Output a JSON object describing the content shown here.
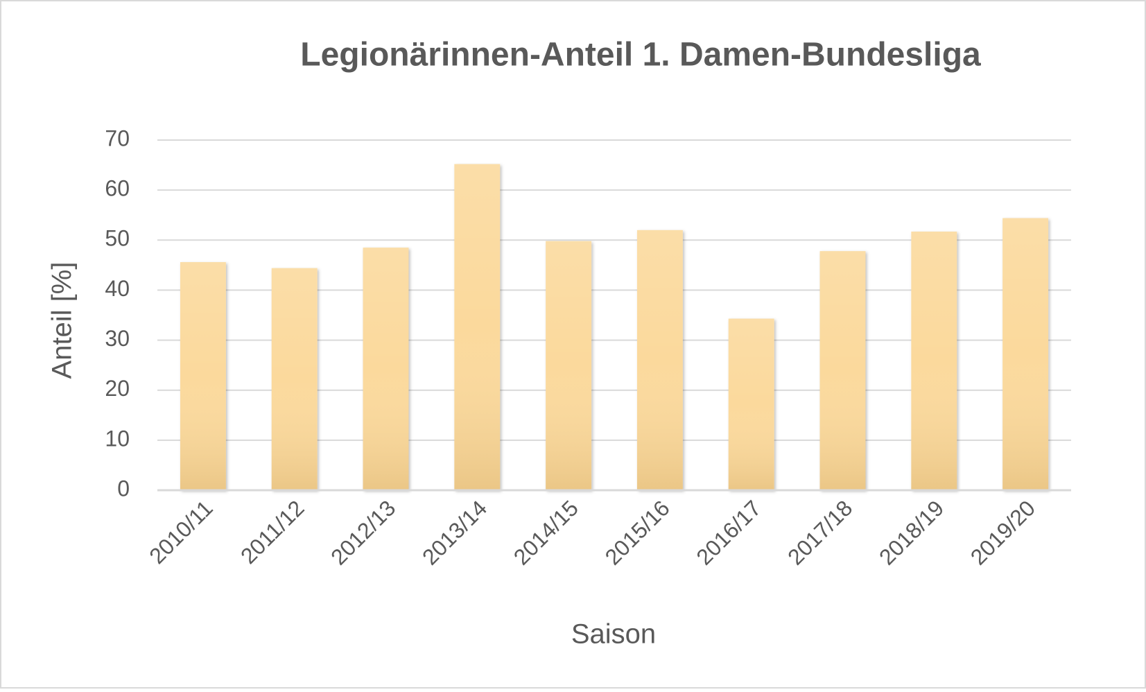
{
  "chart_data": {
    "type": "bar",
    "title": "Legionärinnen-Anteil 1. Damen-Bundesliga",
    "x_label": "Saison",
    "y_label": "Anteil [%]",
    "categories": [
      "2010/11",
      "2011/12",
      "2012/13",
      "2013/14",
      "2014/15",
      "2015/16",
      "2016/17",
      "2017/18",
      "2018/19",
      "2019/20"
    ],
    "values": [
      45.6,
      44.4,
      48.5,
      65.2,
      49.8,
      52.0,
      34.3,
      47.8,
      51.7,
      54.4
    ],
    "color": "#fbd99c",
    "ylim": [
      0,
      70
    ],
    "yticks": [
      0,
      10,
      20,
      30,
      40,
      50,
      60,
      70
    ],
    "grid": true
  }
}
